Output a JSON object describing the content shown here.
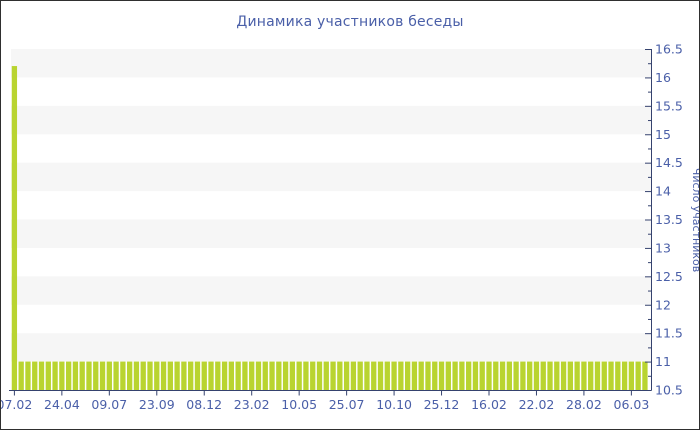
{
  "window": {
    "border_color": "#2f2f2f",
    "background": "#ffffff"
  },
  "title": {
    "text": "Динамика участников беседы",
    "color": "#4a5fa8"
  },
  "colors": {
    "bar": "#b9d430",
    "axis_line": "#35426e",
    "tick_label": "#4a5fa8",
    "stripe": "#f6f6f6",
    "background": "#ffffff"
  },
  "chart_data": {
    "type": "bar",
    "title": "Динамика участников беседы",
    "xlabel": "",
    "ylabel": "Число участников",
    "ylim": [
      10.5,
      16.5
    ],
    "ytick_step": 0.5,
    "ytick_minor_step": 0.25,
    "ytick_labels": [
      "10.5",
      "11",
      "11.5",
      "12",
      "12.5",
      "13",
      "13.5",
      "14",
      "14.5",
      "15",
      "15.5",
      "16",
      "16.5"
    ],
    "x_tick_labels": [
      "07.02",
      "24.04",
      "09.07",
      "23.09",
      "08.12",
      "23.02",
      "10.05",
      "25.07",
      "10.10",
      "25.12",
      "16.02",
      "22.02",
      "28.02",
      "06.03"
    ],
    "x_label_every_n_bars": 7,
    "bar_count": 94,
    "values": [
      16.2,
      11,
      11,
      11,
      11,
      11,
      11,
      11,
      11,
      11,
      11,
      11,
      11,
      11,
      11,
      11,
      11,
      11,
      11,
      11,
      11,
      11,
      11,
      11,
      11,
      11,
      11,
      11,
      11,
      11,
      11,
      11,
      11,
      11,
      11,
      11,
      11,
      11,
      11,
      11,
      11,
      11,
      11,
      11,
      11,
      11,
      11,
      11,
      11,
      11,
      11,
      11,
      11,
      11,
      11,
      11,
      11,
      11,
      11,
      11,
      11,
      11,
      11,
      11,
      11,
      11,
      11,
      11,
      11,
      11,
      11,
      11,
      11,
      11,
      11,
      11,
      11,
      11,
      11,
      11,
      11,
      11,
      11,
      11,
      11,
      11,
      11,
      11,
      11,
      11,
      11,
      11,
      11,
      11
    ],
    "legend_position": "none",
    "grid": "striped-horizontal"
  }
}
